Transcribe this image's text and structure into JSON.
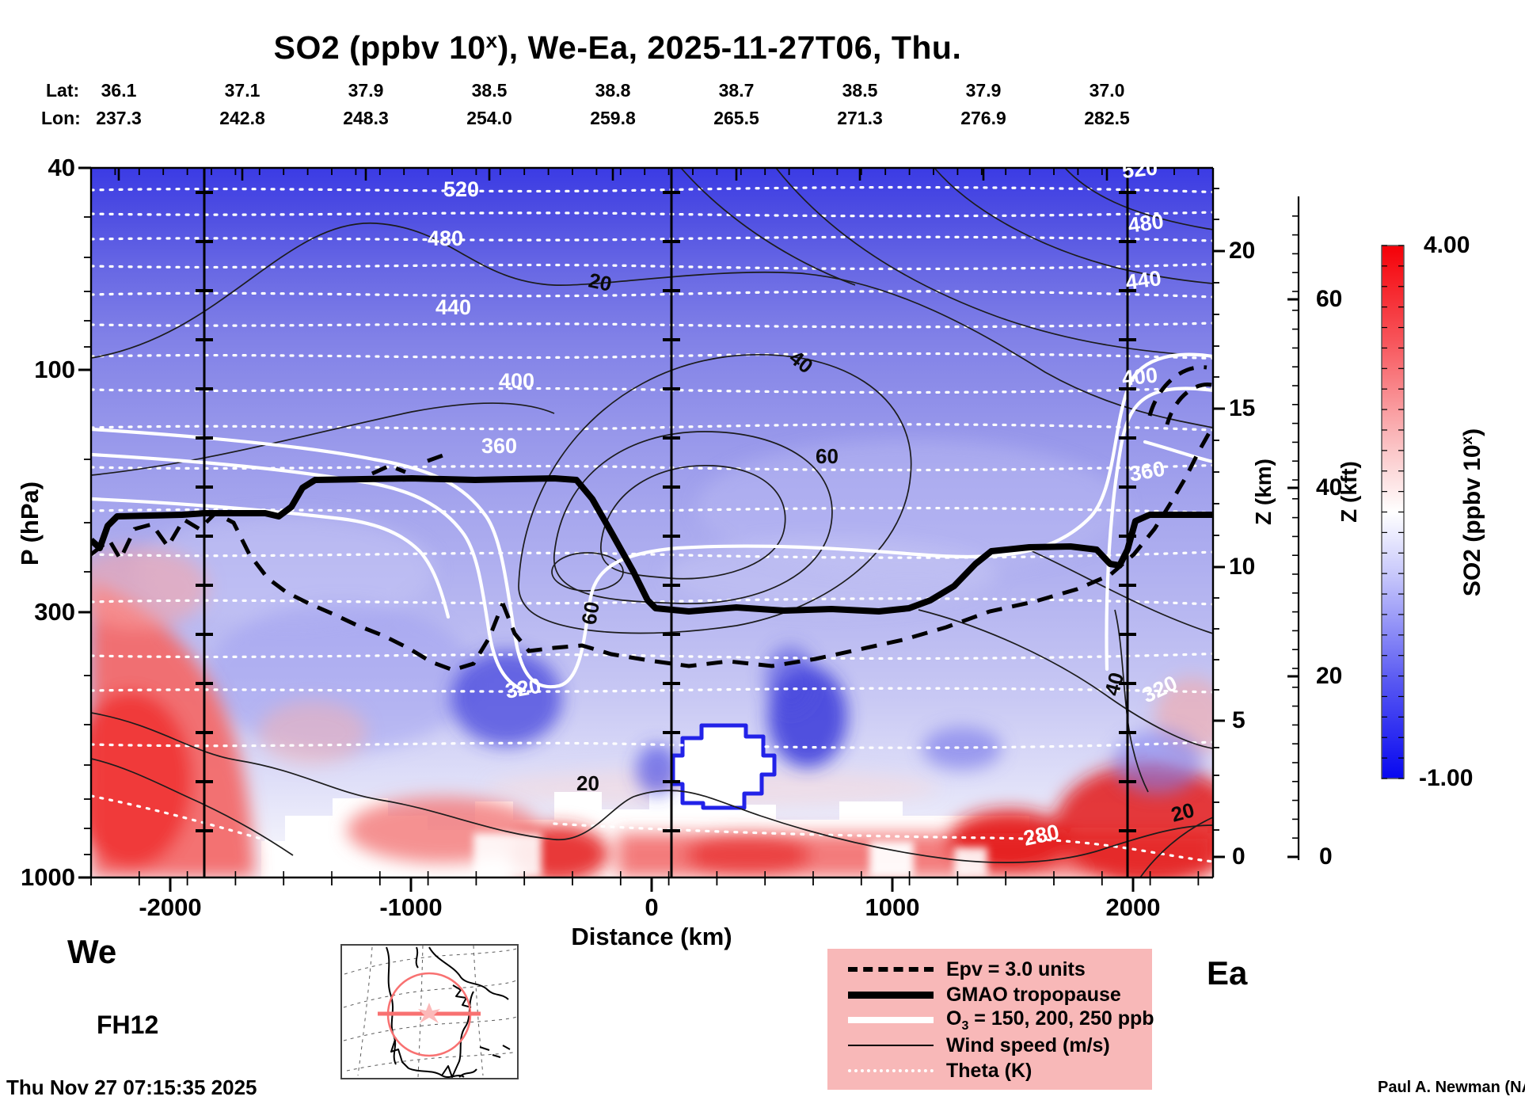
{
  "title": {
    "prefix": "SO2 (ppbv 10",
    "exp": "x",
    "suffix": "), We-Ea, 2025-11-27T06, Thu."
  },
  "header": {
    "lat_label": "Lat:",
    "lon_label": "Lon:",
    "lat_values": [
      "36.1",
      "37.1",
      "37.9",
      "38.5",
      "38.8",
      "38.7",
      "38.5",
      "37.9",
      "37.0"
    ],
    "lon_values": [
      "237.3",
      "242.8",
      "248.3",
      "254.0",
      "259.8",
      "265.5",
      "271.3",
      "276.9",
      "282.5"
    ]
  },
  "axes": {
    "pressure": {
      "label": "P (hPa)",
      "ticks": [
        "40",
        "100",
        "300",
        "1000"
      ]
    },
    "distance": {
      "label": "Distance (km)",
      "ticks": [
        "-2000",
        "-1000",
        "0",
        "1000",
        "2000"
      ]
    },
    "z_km": {
      "label": "Z (km)",
      "ticks": [
        "20",
        "15",
        "10",
        "5",
        "0"
      ]
    },
    "z_kft": {
      "label": "Z (kft)",
      "ticks": [
        "60",
        "40",
        "20",
        "0"
      ]
    }
  },
  "colorbar": {
    "max": "4.00",
    "min": "-1.00",
    "title_prefix": "SO2 (ppbv 10",
    "title_exp": "x",
    "title_suffix": ")"
  },
  "legend": {
    "entries": [
      {
        "label": "Epv = 3.0 units"
      },
      {
        "label": "GMAO tropopause"
      },
      {
        "pre": "O",
        "sub": "3",
        "post": " = 150, 200, 250 ppb"
      },
      {
        "label": "Wind speed (m/s)"
      },
      {
        "label": "Theta (K)"
      }
    ]
  },
  "footer": {
    "corner_left": "We",
    "corner_right": "Ea",
    "forecast_hour": "FH12",
    "timestamp": "Thu Nov 27 07:15:35 2025",
    "credit": "Paul A. Newman (NASA"
  },
  "labels": [
    "520",
    "480",
    "440",
    "400",
    "360",
    "320",
    "280",
    "520",
    "480",
    "440",
    "400",
    "360",
    "320",
    "20",
    "40",
    "60",
    "60",
    "40",
    "20",
    "20"
  ],
  "chart_data": {
    "type": "heatmap",
    "subtype": "vertical-cross-section-contour",
    "title": "SO2 (ppbv 10^x), We-Ea, 2025-11-27T06, Thu.",
    "fill_variable": {
      "name": "SO2",
      "units": "ppbv 10^x",
      "colorbar_min": -1.0,
      "colorbar_max": 4.0,
      "colormap": "blue-white-red diverging",
      "white_center_value": 1.5
    },
    "xlabel": "Distance (km)",
    "x_ticks": [
      -2000,
      -1000,
      0,
      1000,
      2000
    ],
    "xlim": [
      -2320,
      2340
    ],
    "y_left": {
      "label": "P (hPa)",
      "scale": "log",
      "ticks": [
        40,
        100,
        300,
        1000
      ],
      "ylim": [
        40,
        1000
      ]
    },
    "y_right_km": {
      "label": "Z (km)",
      "ticks": [
        20,
        15,
        10,
        5,
        0
      ]
    },
    "y_right_kft": {
      "label": "Z (kft)",
      "ticks": [
        60,
        40,
        20,
        0
      ]
    },
    "track": {
      "endpoints": [
        "We",
        "Ea"
      ],
      "lat": [
        36.1,
        37.1,
        37.9,
        38.5,
        38.8,
        38.7,
        38.5,
        37.9,
        37.0
      ],
      "lon": [
        237.3,
        242.8,
        248.3,
        254.0,
        259.8,
        265.5,
        271.3,
        276.9,
        282.5
      ]
    },
    "contour_sets": [
      {
        "name": "Theta (K)",
        "style": "white dotted",
        "labeled_levels": [
          280,
          320,
          360,
          400,
          440,
          480,
          520
        ]
      },
      {
        "name": "Wind speed (m/s)",
        "style": "thin black solid",
        "labeled_levels": [
          20,
          40,
          60
        ]
      },
      {
        "name": "O3 (ppb)",
        "style": "thick white solid",
        "levels": [
          150,
          200,
          250
        ]
      },
      {
        "name": "Epv",
        "style": "thick black dashed",
        "levels": [
          3.0
        ],
        "units": "units"
      },
      {
        "name": "GMAO tropopause",
        "style": "very thick black solid",
        "approx_pressure_hPa_by_distance": {
          "-2300": 215,
          "-1800": 195,
          "-1400": 165,
          "-500": 165,
          "0": 300,
          "700": 300,
          "1500": 235,
          "2300": 195
        }
      }
    ],
    "vertical_marker_lines_km": [
      -1870,
      80,
      1975
    ],
    "legend_position": "bottom-right",
    "grid": false,
    "notes": "Blue region aloft (low SO2), red near-surface maxima at far west and along lower boundary east of 0 km; white below-terrain gaps along bottom; white SO2 void outlined in blue near +100..+450 km at ~450-600 hPa.",
    "forecast_hour": "FH12",
    "generated": "Thu Nov 27 07:15:35 2025",
    "credit": "Paul A. Newman (NASA"
  }
}
